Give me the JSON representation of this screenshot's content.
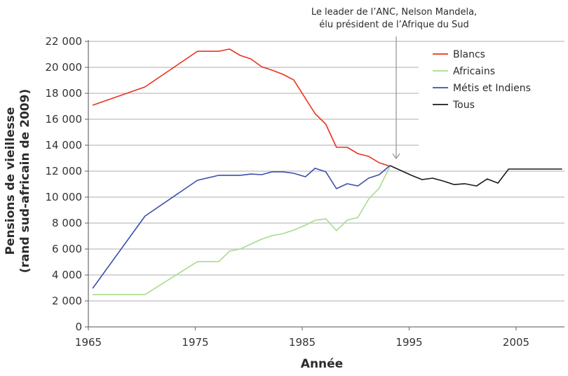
{
  "chart_data": {
    "type": "line",
    "title": "",
    "xlabel": "Année",
    "ylabel": "Pensions de vieillesse (rand sud-africain de 2009)",
    "ylabel_lines": [
      "Pensions de vieillesse",
      "(rand sud-africain de 2009)"
    ],
    "xlim": [
      1965,
      2009
    ],
    "ylim": [
      0,
      22000
    ],
    "x_ticks": [
      1965,
      1975,
      1985,
      1995,
      2005
    ],
    "x_tick_labels": [
      "1965",
      "1975",
      "1985",
      "1995",
      "2005"
    ],
    "y_ticks": [
      0,
      2000,
      4000,
      6000,
      8000,
      10000,
      12000,
      14000,
      16000,
      18000,
      20000,
      22000
    ],
    "y_tick_labels": [
      "0",
      "2 000",
      "4 000",
      "6 000",
      "8 000",
      "10 000",
      "12 000",
      "14 000",
      "16 000",
      "18 000",
      "20 000",
      "22 000"
    ],
    "grid": "horizontal",
    "legend_position": "upper right",
    "annotation": {
      "lines": [
        "Le leader de l’ANC, Nelson Mandela,",
        "élu président de l’Afrique du Sud"
      ],
      "x": 1993.6
    },
    "series": [
      {
        "name": "Blancs",
        "color": "#e8321e",
        "x": [
          1965.4,
          1970.3,
          1975.2,
          1977.2,
          1978.2,
          1979.2,
          1980.2,
          1981.2,
          1982.2,
          1983.2,
          1984.2,
          1986.2,
          1987.2,
          1988.2,
          1989.2,
          1990.2,
          1991.2,
          1992.2,
          1993.2
        ],
        "values": [
          17080,
          18490,
          21240,
          21240,
          21410,
          20920,
          20650,
          20050,
          19780,
          19460,
          19030,
          16430,
          15620,
          13840,
          13840,
          13350,
          13140,
          12650,
          12380
        ]
      },
      {
        "name": "Africains",
        "color": "#a8db8f",
        "x": [
          1965.4,
          1970.3,
          1975.2,
          1977.2,
          1978.2,
          1979.2,
          1980.2,
          1981.2,
          1982.2,
          1983.2,
          1984.2,
          1985.3,
          1986.2,
          1987.2,
          1988.2,
          1989.2,
          1990.2,
          1991.2,
          1992.2,
          1993.2
        ],
        "values": [
          2490,
          2490,
          5030,
          5030,
          5840,
          6000,
          6380,
          6760,
          7030,
          7190,
          7460,
          7840,
          8220,
          8330,
          7410,
          8220,
          8430,
          9840,
          10700,
          12380
        ]
      },
      {
        "name": "Métis et Indiens",
        "color": "#3b4fa8",
        "x": [
          1965.4,
          1970.3,
          1975.2,
          1977.2,
          1978.2,
          1979.2,
          1980.2,
          1981.2,
          1982.2,
          1983.2,
          1984.2,
          1985.3,
          1986.2,
          1987.2,
          1988.2,
          1989.2,
          1990.2,
          1991.2,
          1992.2,
          1993.2
        ],
        "values": [
          2970,
          8540,
          11300,
          11680,
          11680,
          11680,
          11780,
          11730,
          11950,
          11950,
          11840,
          11570,
          12220,
          11950,
          10650,
          11030,
          10860,
          11460,
          11730,
          12430
        ]
      },
      {
        "name": "Tous",
        "color": "#1a1a1a",
        "x": [
          1993.2,
          1995.2,
          1996.2,
          1997.2,
          1998.2,
          1999.2,
          2000.2,
          2001.3,
          2002.3,
          2003.3,
          2004.3,
          2009.3
        ],
        "values": [
          12430,
          11680,
          11350,
          11460,
          11240,
          10970,
          11030,
          10860,
          11400,
          11080,
          12160,
          12160
        ]
      }
    ]
  }
}
